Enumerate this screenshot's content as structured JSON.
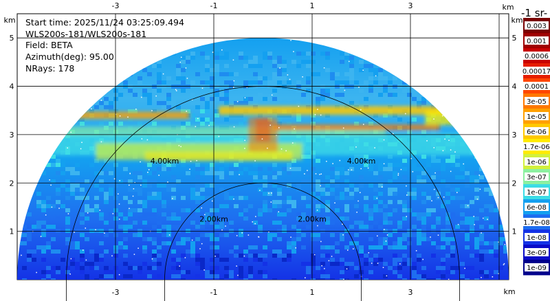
{
  "info": {
    "start_time": "Start time: 2025/11/24 03:25:09.494",
    "instrument": "WLS200s-181/WLS200s-181",
    "field": "Field: BETA",
    "azimuth": "Azimuth(deg): 95.00",
    "nrays": "NRays: 178"
  },
  "colorbar": {
    "title": "-1 sr-",
    "labels": [
      "0.003",
      "0.001",
      "0.0006",
      "0.00017",
      "0.0001",
      "3e-05",
      "1e-05",
      "6e-06",
      "1.7e-06",
      "1e-06",
      "3e-07",
      "1e-07",
      "6e-08",
      "1.7e-08",
      "1e-08",
      "3e-09",
      "1e-09"
    ],
    "colors": [
      "#7a0000",
      "#a00000",
      "#c80000",
      "#e61e00",
      "#ff4600",
      "#ff7800",
      "#ffa000",
      "#ffc800",
      "#ffeb00",
      "#d2f03c",
      "#8cf0a0",
      "#3cdce6",
      "#14a0f0",
      "#1e6ef0",
      "#1432e6",
      "#0a0ac8",
      "#00008c"
    ]
  },
  "chart_data": {
    "type": "heatmap",
    "title": "",
    "xlabel": "km",
    "ylabel": "km",
    "xlim": [
      -5,
      5
    ],
    "ylim": [
      0,
      5.5
    ],
    "x_ticks": [
      -3,
      -1,
      1,
      3
    ],
    "y_ticks": [
      1,
      2,
      3,
      4,
      5
    ],
    "scan": "RHI",
    "field": "BETA",
    "azimuth_deg": 95.0,
    "n_rays": 178,
    "max_range_km": 5.0,
    "range_rings": [
      {
        "radius_km": 2.0,
        "label": "2.00km"
      },
      {
        "radius_km": 4.0,
        "label": "4.00km"
      }
    ],
    "grid": true,
    "features": [
      {
        "kind": "elevated_layer",
        "height_km": 3.4,
        "value": "3e-05"
      },
      {
        "kind": "aerosol_layer",
        "height_km": 2.9,
        "value": "6e-06"
      }
    ]
  }
}
